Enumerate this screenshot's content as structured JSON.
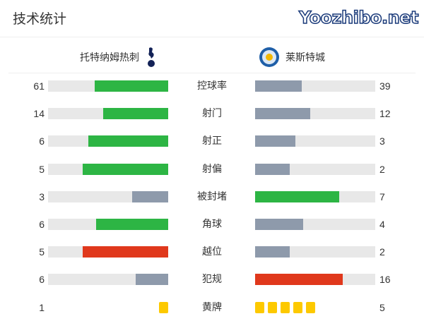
{
  "title": "技术统计",
  "home": {
    "name": "托特纳姆热刺",
    "icon": "tottenham-crest-icon"
  },
  "away": {
    "name": "莱斯特城",
    "icon": "leicester-crest-icon"
  },
  "colors": {
    "green": "#2db544",
    "gray": "#8e9aab",
    "red": "#e0381c",
    "yellow": "#fdc900",
    "track": "#e8e8e8"
  },
  "stats": [
    {
      "label": "控球率",
      "home": 61,
      "away": 39,
      "home_color": "green",
      "away_color": "gray"
    },
    {
      "label": "射门",
      "home": 14,
      "away": 12,
      "home_color": "green",
      "away_color": "gray"
    },
    {
      "label": "射正",
      "home": 6,
      "away": 3,
      "home_color": "green",
      "away_color": "gray"
    },
    {
      "label": "射偏",
      "home": 5,
      "away": 2,
      "home_color": "green",
      "away_color": "gray"
    },
    {
      "label": "被封堵",
      "home": 3,
      "away": 7,
      "home_color": "gray",
      "away_color": "green"
    },
    {
      "label": "角球",
      "home": 6,
      "away": 4,
      "home_color": "green",
      "away_color": "gray"
    },
    {
      "label": "越位",
      "home": 5,
      "away": 2,
      "home_color": "red",
      "away_color": "gray"
    },
    {
      "label": "犯规",
      "home": 6,
      "away": 16,
      "home_color": "gray",
      "away_color": "red"
    }
  ],
  "yellow_cards": {
    "label": "黄牌",
    "home": 1,
    "away": 5
  },
  "watermark": "Yoozhibo.net"
}
